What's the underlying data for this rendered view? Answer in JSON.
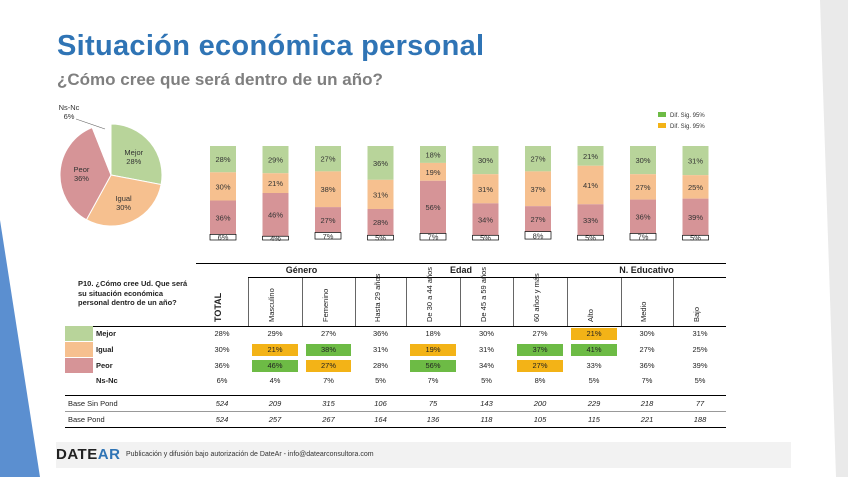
{
  "slide": {
    "title": "Situación económica personal",
    "subtitle": "¿Cómo cree que será dentro de un año?",
    "footer_logo_part1": "DATE",
    "footer_logo_part2": "AR",
    "footer_text": "Publicación y difusión bajo autorización de DateAr - info@datearconsultora.com"
  },
  "colors": {
    "mejor": "#b8d49a",
    "igual": "#f6c08f",
    "peor": "#d69497",
    "nsnc": "#ffffff",
    "sig_green": "#6dbb45",
    "sig_orange": "#f3b317",
    "title": "#2f74b5"
  },
  "legend": {
    "green": "Dif. Sig. 95%",
    "orange": "Dif. Sig. 95%"
  },
  "chart_data": [
    {
      "type": "pie",
      "slices": [
        {
          "label": "Mejor",
          "value": 28
        },
        {
          "label": "Igual",
          "value": 30
        },
        {
          "label": "Peor",
          "value": 36
        },
        {
          "label": "Ns-Nc",
          "value": 6
        }
      ]
    },
    {
      "type": "bar",
      "stacked": true,
      "categories": [
        "TOTAL",
        "Masculino",
        "Femenino",
        "Hasta 29 años",
        "De 30 a 44 años",
        "De 45 a 59 años",
        "60 años y más",
        "Alto",
        "Medio",
        "Bajo"
      ],
      "series": [
        {
          "name": "Mejor",
          "values": [
            28,
            29,
            27,
            36,
            18,
            30,
            27,
            21,
            30,
            31
          ]
        },
        {
          "name": "Igual",
          "values": [
            30,
            21,
            38,
            31,
            19,
            31,
            37,
            41,
            27,
            25
          ]
        },
        {
          "name": "Peor",
          "values": [
            36,
            46,
            27,
            28,
            56,
            34,
            27,
            33,
            36,
            39
          ]
        },
        {
          "name": "Ns-Nc",
          "values": [
            6,
            4,
            7,
            5,
            7,
            5,
            8,
            5,
            7,
            5
          ]
        }
      ]
    }
  ],
  "table": {
    "question": "P10. ¿Cómo cree Ud. Que será su situación económica personal dentro de un año?",
    "groups": [
      "Género",
      "Edad",
      "N. Educativo"
    ],
    "columns": [
      "TOTAL",
      "Masculino",
      "Femenino",
      "Hasta 29 años",
      "De 30 a 44 años",
      "De 45 a 59 años",
      "60 años y más",
      "Alto",
      "Medio",
      "Bajo"
    ],
    "rows": [
      {
        "label": "Mejor",
        "cells": [
          "28%",
          "29%",
          "27%",
          "36%",
          "18%",
          "30%",
          "27%",
          "21%",
          "30%",
          "31%"
        ],
        "hl": [
          "",
          "",
          "",
          "",
          "",
          "",
          "",
          "o",
          "",
          ""
        ]
      },
      {
        "label": "Igual",
        "cells": [
          "30%",
          "21%",
          "38%",
          "31%",
          "19%",
          "31%",
          "37%",
          "41%",
          "27%",
          "25%"
        ],
        "hl": [
          "",
          "o",
          "g",
          "",
          "o",
          "",
          "g",
          "g",
          "",
          ""
        ]
      },
      {
        "label": "Peor",
        "cells": [
          "36%",
          "46%",
          "27%",
          "28%",
          "56%",
          "34%",
          "27%",
          "33%",
          "36%",
          "39%"
        ],
        "hl": [
          "",
          "g",
          "o",
          "",
          "g",
          "",
          "o",
          "",
          "",
          ""
        ]
      },
      {
        "label": "Ns-Nc",
        "cells": [
          "6%",
          "4%",
          "7%",
          "5%",
          "7%",
          "5%",
          "8%",
          "5%",
          "7%",
          "5%"
        ],
        "hl": [
          "",
          "",
          "",
          "",
          "",
          "",
          "",
          "",
          "",
          ""
        ]
      }
    ],
    "bases": [
      {
        "label": "Base Sin Pond",
        "cells": [
          "524",
          "209",
          "315",
          "106",
          "75",
          "143",
          "200",
          "229",
          "218",
          "77"
        ]
      },
      {
        "label": "Base Pond",
        "cells": [
          "524",
          "257",
          "267",
          "164",
          "136",
          "118",
          "105",
          "115",
          "221",
          "188"
        ]
      }
    ]
  }
}
